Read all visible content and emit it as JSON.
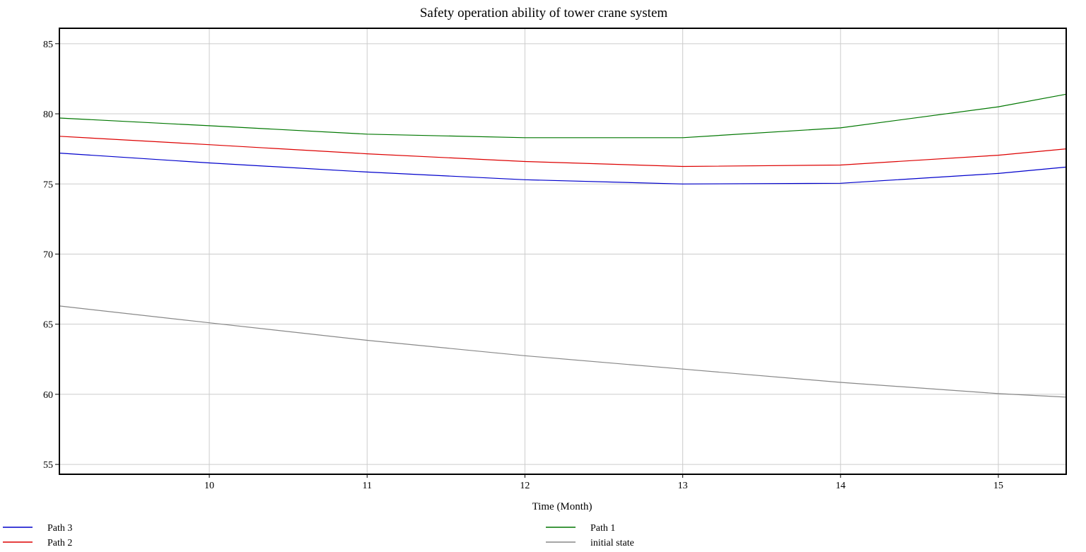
{
  "chart_data": {
    "type": "line",
    "title": "Safety operation ability of tower crane system",
    "xlabel": "Time (Month)",
    "ylabel": "",
    "xlim": [
      9.05,
      15.43
    ],
    "ylim": [
      54.3,
      86.1
    ],
    "xticks": [
      10,
      11,
      12,
      13,
      14,
      15
    ],
    "yticks": [
      55,
      60,
      65,
      70,
      75,
      80,
      85
    ],
    "grid": true,
    "legend_position": "bottom",
    "series": [
      {
        "name": "Path 3",
        "color": "#0000cc",
        "x": [
          9.05,
          10,
          11,
          12,
          13,
          14,
          15,
          15.43
        ],
        "y": [
          77.2,
          76.5,
          75.85,
          75.3,
          75.0,
          75.05,
          75.75,
          76.2
        ]
      },
      {
        "name": "Path 2",
        "color": "#dd0000",
        "x": [
          9.05,
          10,
          11,
          12,
          13,
          14,
          15,
          15.43
        ],
        "y": [
          78.4,
          77.8,
          77.15,
          76.6,
          76.25,
          76.35,
          77.05,
          77.5
        ]
      },
      {
        "name": "Path 1",
        "color": "#007700",
        "x": [
          9.05,
          10,
          11,
          12,
          13,
          14,
          15,
          15.43
        ],
        "y": [
          79.7,
          79.15,
          78.55,
          78.3,
          78.3,
          79.0,
          80.5,
          81.4
        ]
      },
      {
        "name": "initial state",
        "color": "#888888",
        "x": [
          9.05,
          10,
          11,
          12,
          13,
          14,
          15,
          15.43
        ],
        "y": [
          66.3,
          65.1,
          63.85,
          62.75,
          61.8,
          60.85,
          60.05,
          59.8
        ]
      }
    ]
  }
}
